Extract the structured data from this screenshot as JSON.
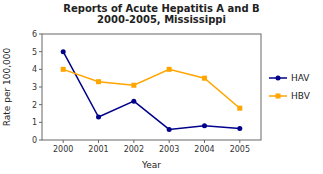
{
  "chart_data": {
    "type": "line",
    "title": "Reports of Acute Hepatitis A and B\n2000-2005, Mississippi",
    "x_label": "Year",
    "y_label": "Rate per 100,000",
    "x": [
      2000,
      2001,
      2002,
      2003,
      2004,
      2005
    ],
    "series": [
      {
        "name": "HAV",
        "color": "#00008B",
        "marker": "circle",
        "values": [
          5.0,
          1.3,
          2.2,
          0.6,
          0.8,
          0.65
        ]
      },
      {
        "name": "HBV",
        "color": "#FFA500",
        "marker": "square",
        "values": [
          4.0,
          3.3,
          3.1,
          4.0,
          3.5,
          1.8
        ]
      }
    ],
    "xlim": [
      1999.4,
      2005.6
    ],
    "xticks": [
      2000,
      2001,
      2002,
      2003,
      2004,
      2005
    ],
    "ylim": [
      0,
      6
    ],
    "yticks": [
      0,
      1,
      2,
      3,
      4,
      5,
      6
    ],
    "grid": false,
    "legend": "right"
  }
}
